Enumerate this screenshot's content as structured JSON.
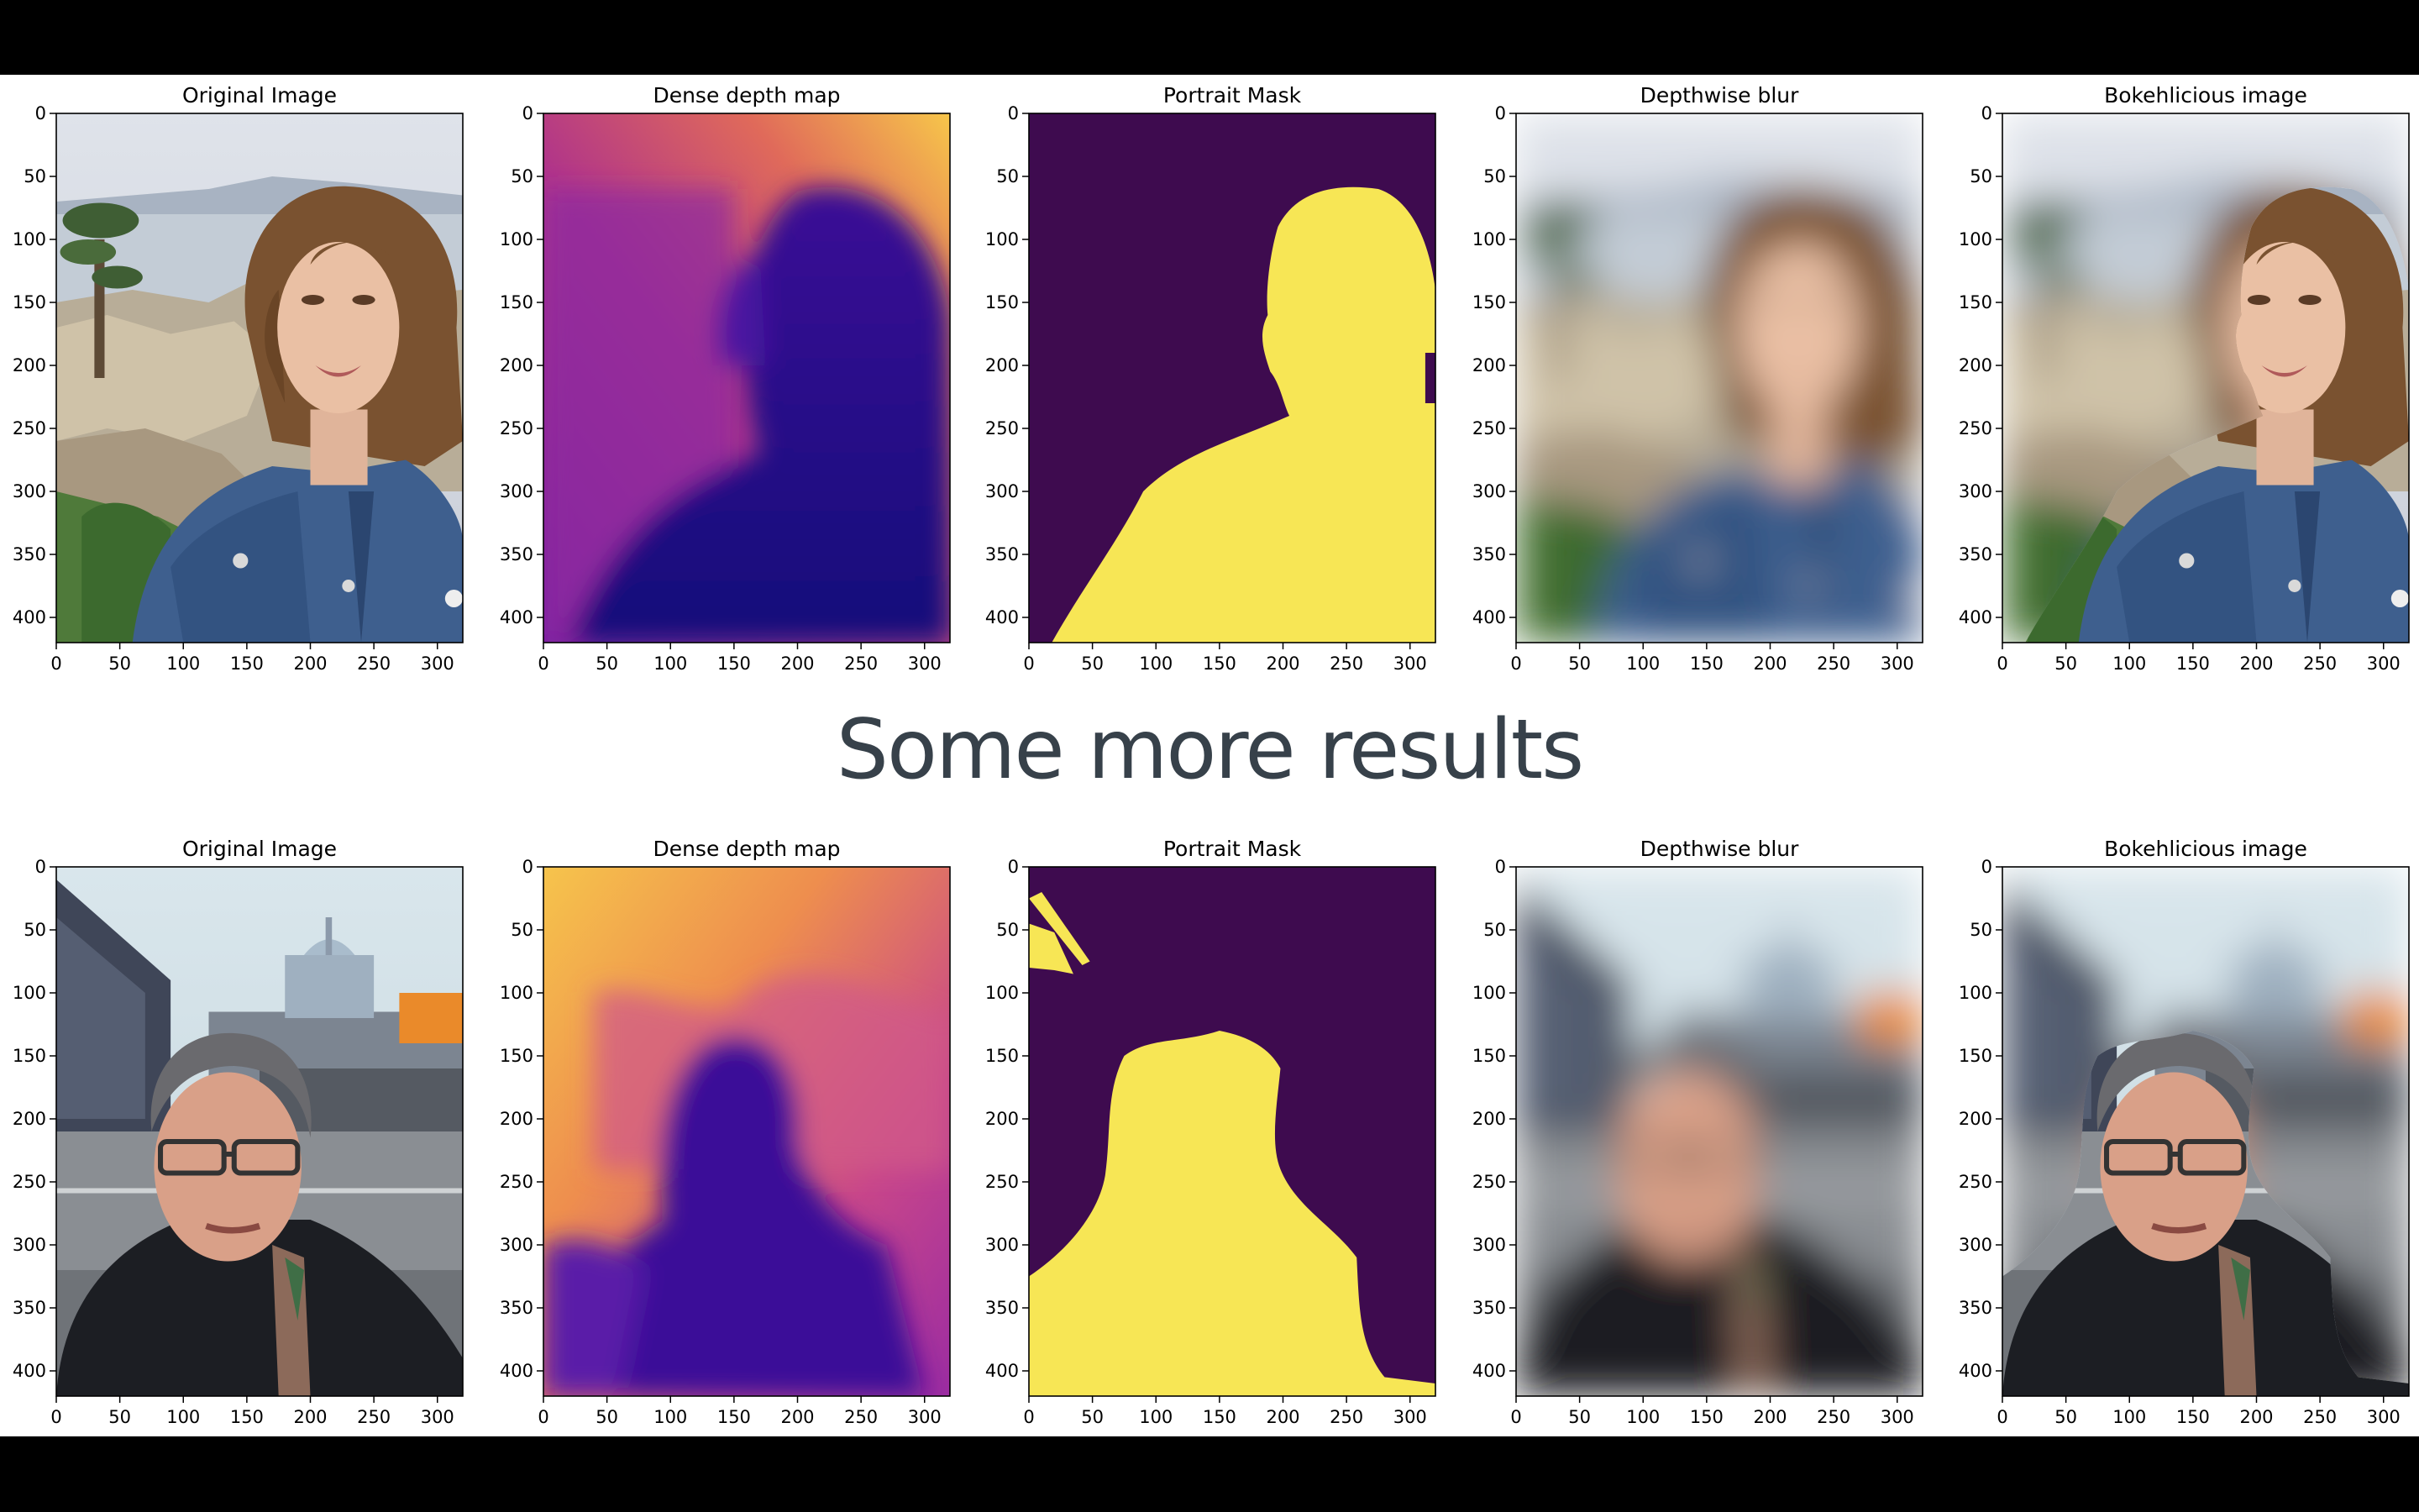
{
  "slide_heading": "Some more results",
  "panel_titles": [
    "Original Image",
    "Dense depth map",
    "Portrait Mask",
    "Depthwise blur",
    "Bokehlicious image"
  ],
  "axes": {
    "x_ticks": [
      "0",
      "50",
      "100",
      "150",
      "200",
      "250",
      "300"
    ],
    "y_ticks": [
      "0",
      "50",
      "100",
      "150",
      "200",
      "250",
      "300",
      "350",
      "400"
    ],
    "xlim": [
      0,
      320
    ],
    "ylim": [
      0,
      420
    ]
  },
  "rows": [
    {
      "subject": "woman",
      "panels": [
        {
          "title": "Original Image",
          "kind": "photo"
        },
        {
          "title": "Dense depth map",
          "kind": "depth"
        },
        {
          "title": "Portrait Mask",
          "kind": "mask"
        },
        {
          "title": "Depthwise blur",
          "kind": "blur"
        },
        {
          "title": "Bokehlicious image",
          "kind": "bokeh"
        }
      ]
    },
    {
      "subject": "man",
      "panels": [
        {
          "title": "Original Image",
          "kind": "photo"
        },
        {
          "title": "Dense depth map",
          "kind": "depth"
        },
        {
          "title": "Portrait Mask",
          "kind": "mask"
        },
        {
          "title": "Depthwise blur",
          "kind": "blur"
        },
        {
          "title": "Bokehlicious image",
          "kind": "bokeh"
        }
      ]
    }
  ],
  "colors": {
    "mask_background": "#3e0b4f",
    "mask_foreground": "#f7e655",
    "heading": "#37414a",
    "depth_near": "#2a0a86",
    "depth_far": "#f4c84a"
  }
}
